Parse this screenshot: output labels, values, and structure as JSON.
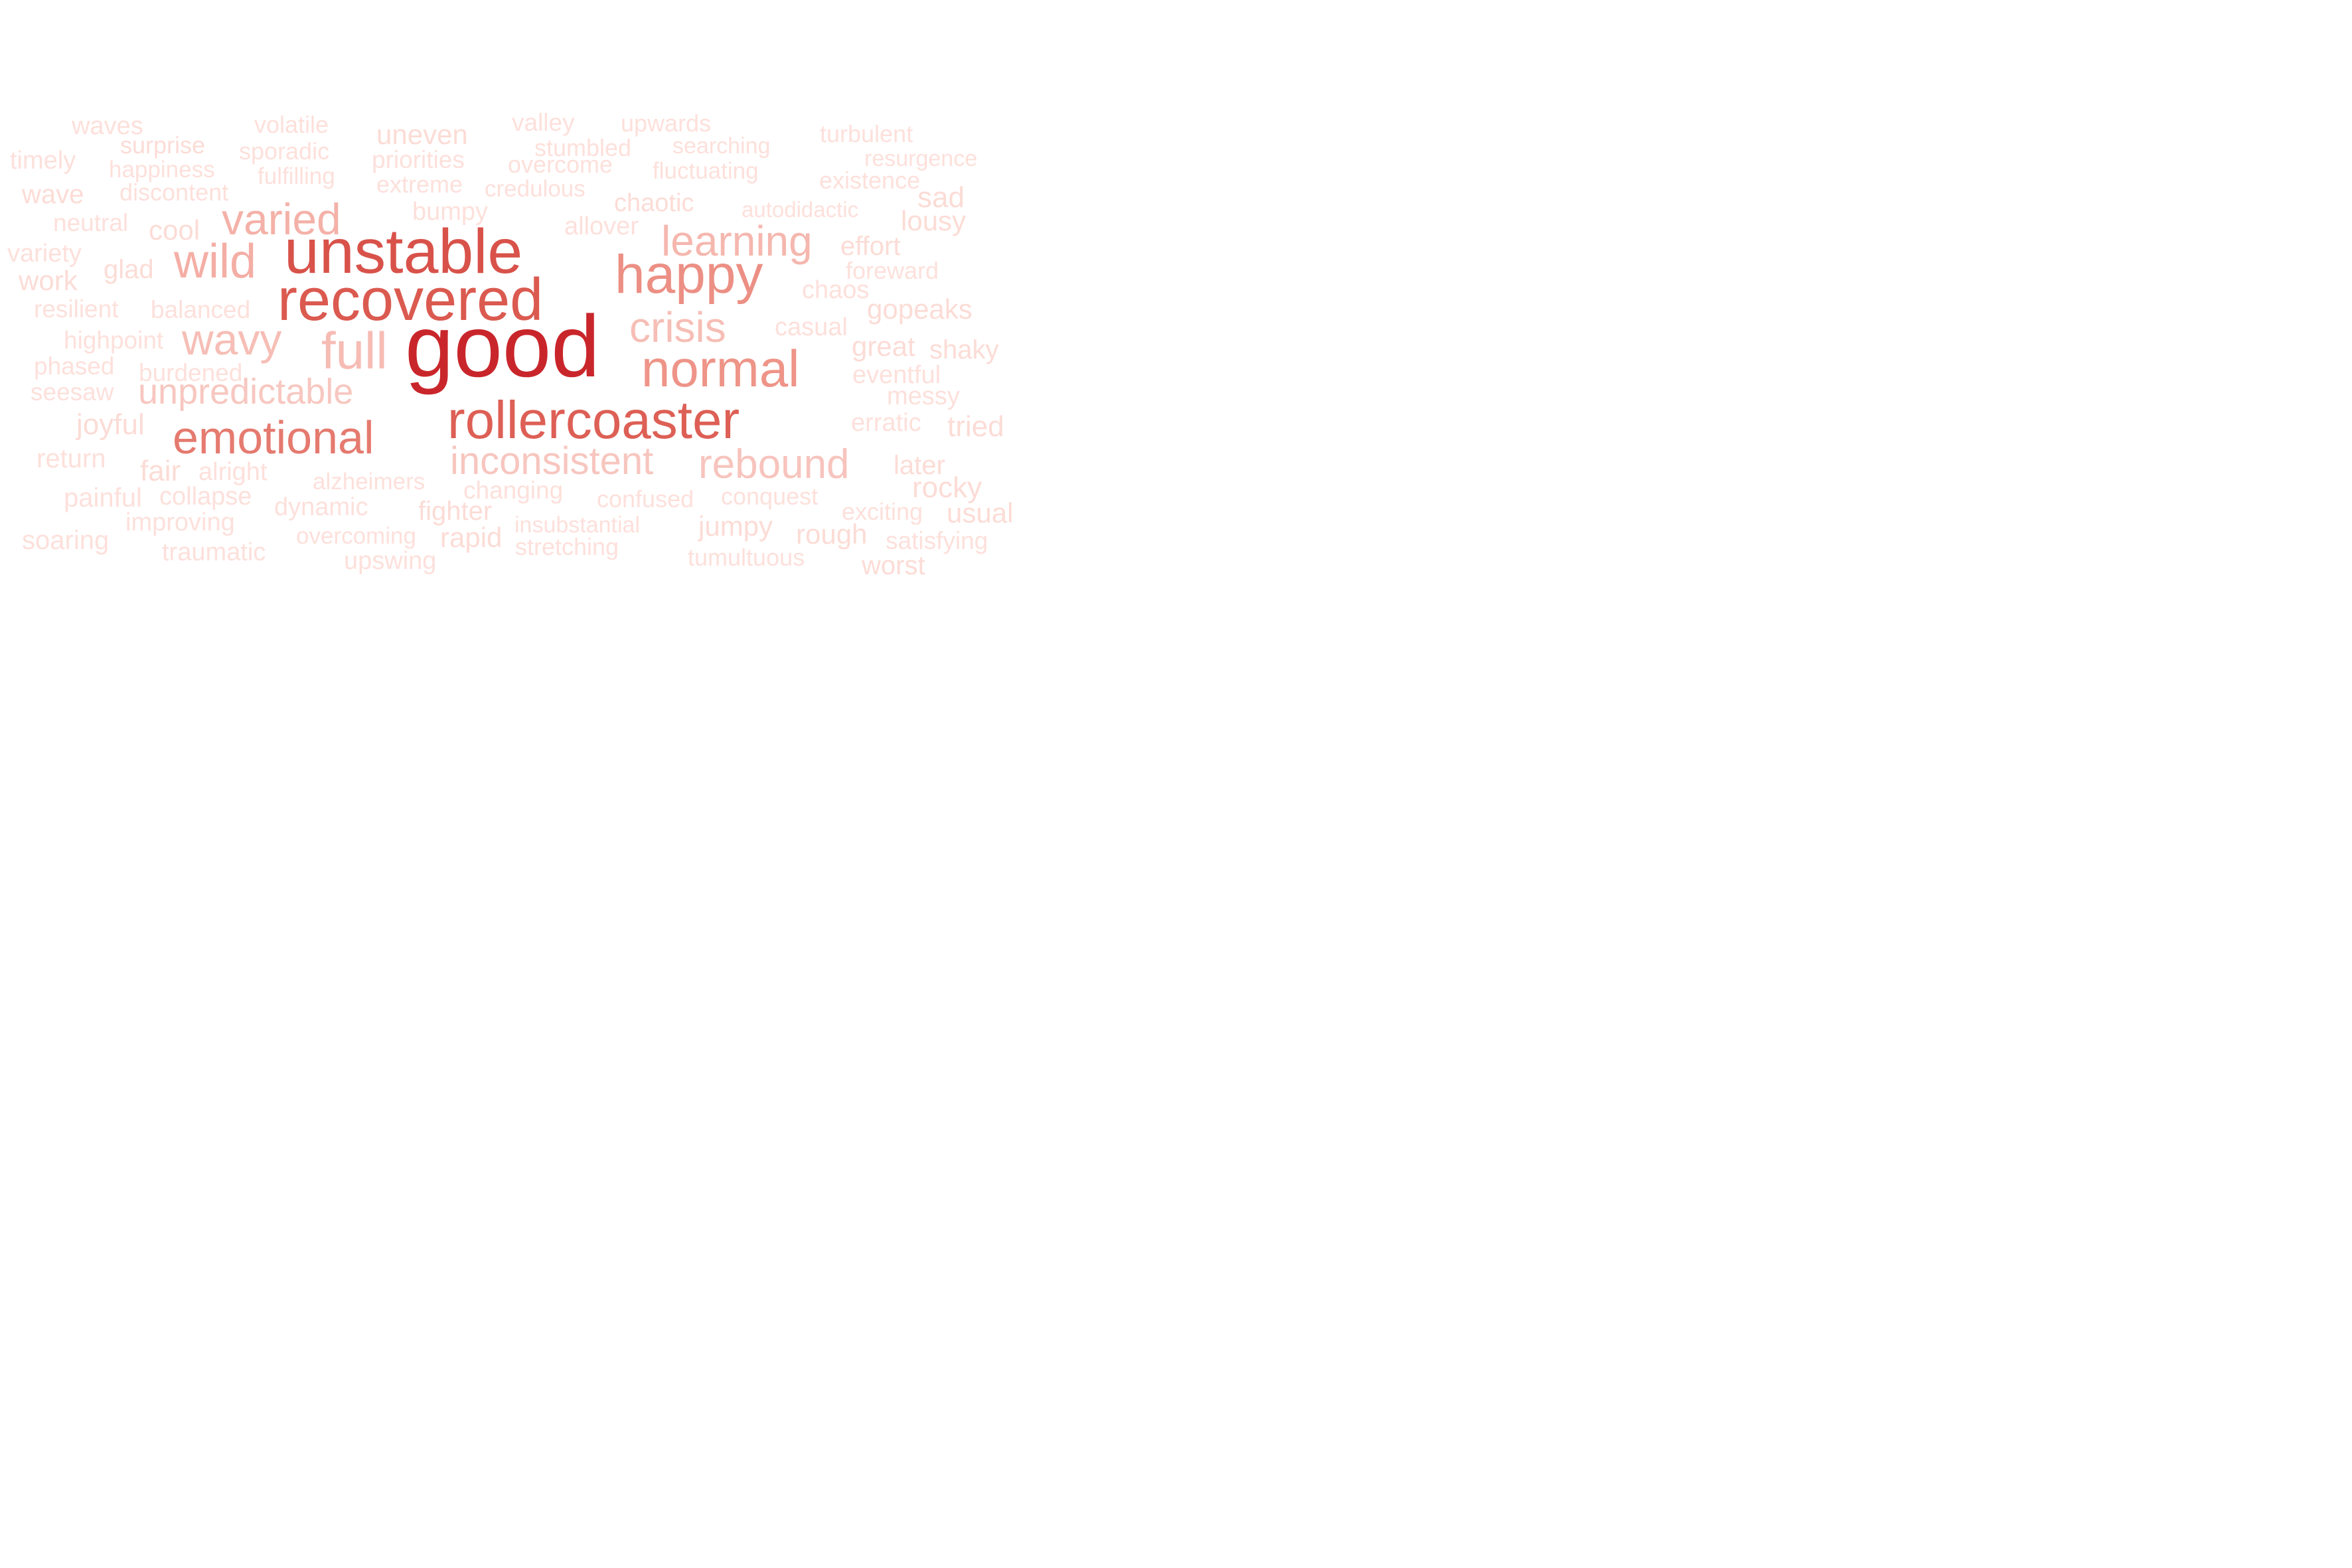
{
  "word_cloud": {
    "words": [
      {
        "text": "good",
        "weight": 1.0,
        "color": "#c9262b"
      },
      {
        "text": "unstable",
        "weight": 0.72,
        "color": "#d8524a"
      },
      {
        "text": "recovered",
        "weight": 0.68,
        "color": "#db5a50"
      },
      {
        "text": "rollercoaster",
        "weight": 0.62,
        "color": "#dd5f55"
      },
      {
        "text": "happy",
        "weight": 0.55,
        "color": "#ec8f84"
      },
      {
        "text": "emotional",
        "weight": 0.5,
        "color": "#e57a6f"
      },
      {
        "text": "normal",
        "weight": 0.5,
        "color": "#ee9488"
      },
      {
        "text": "wild",
        "weight": 0.42,
        "color": "#f4aea5"
      },
      {
        "text": "varied",
        "weight": 0.4,
        "color": "#f4b1a8"
      },
      {
        "text": "learning",
        "weight": 0.38,
        "color": "#f5b7ae"
      },
      {
        "text": "full",
        "weight": 0.4,
        "color": "#f6bcb4"
      },
      {
        "text": "wavy",
        "weight": 0.38,
        "color": "#f6beb6"
      },
      {
        "text": "crisis",
        "weight": 0.36,
        "color": "#f6beb6"
      },
      {
        "text": "inconsistent",
        "weight": 0.34,
        "color": "#f7c6bf"
      },
      {
        "text": "rebound",
        "weight": 0.34,
        "color": "#f7c4bd"
      },
      {
        "text": "unpredictable",
        "weight": 0.3,
        "color": "#f7c7c0"
      },
      {
        "text": "waves",
        "weight": 0.15,
        "color": "#fde0db"
      },
      {
        "text": "volatile",
        "weight": 0.15,
        "color": "#fde0db"
      },
      {
        "text": "uneven",
        "weight": 0.16,
        "color": "#fcdcd6"
      },
      {
        "text": "valley",
        "weight": 0.15,
        "color": "#fde0db"
      },
      {
        "text": "upwards",
        "weight": 0.15,
        "color": "#fde0db"
      },
      {
        "text": "turbulent",
        "weight": 0.15,
        "color": "#fde0db"
      },
      {
        "text": "surprise",
        "weight": 0.15,
        "color": "#fcdcd6"
      },
      {
        "text": "sporadic",
        "weight": 0.15,
        "color": "#fde0db"
      },
      {
        "text": "stumbled",
        "weight": 0.15,
        "color": "#fde0db"
      },
      {
        "text": "searching",
        "weight": 0.15,
        "color": "#fde0db"
      },
      {
        "text": "timely",
        "weight": 0.15,
        "color": "#fde0db"
      },
      {
        "text": "happiness",
        "weight": 0.15,
        "color": "#fde0db"
      },
      {
        "text": "fulfilling",
        "weight": 0.15,
        "color": "#fde0db"
      },
      {
        "text": "priorities",
        "weight": 0.15,
        "color": "#fde0db"
      },
      {
        "text": "overcome",
        "weight": 0.15,
        "color": "#fde0db"
      },
      {
        "text": "fluctuating",
        "weight": 0.15,
        "color": "#fde0db"
      },
      {
        "text": "resurgence",
        "weight": 0.15,
        "color": "#fde0db"
      },
      {
        "text": "wave",
        "weight": 0.17,
        "color": "#fcdcd6"
      },
      {
        "text": "discontent",
        "weight": 0.15,
        "color": "#fde0db"
      },
      {
        "text": "extreme",
        "weight": 0.15,
        "color": "#fde0db"
      },
      {
        "text": "credulous",
        "weight": 0.15,
        "color": "#fde0db"
      },
      {
        "text": "existence",
        "weight": 0.15,
        "color": "#fde0db"
      },
      {
        "text": "sad",
        "weight": 0.17,
        "color": "#fcdcd6"
      },
      {
        "text": "chaotic",
        "weight": 0.16,
        "color": "#fcdcd6"
      },
      {
        "text": "bumpy",
        "weight": 0.15,
        "color": "#fde0db"
      },
      {
        "text": "autodidactic",
        "weight": 0.14,
        "color": "#fde0db"
      },
      {
        "text": "neutral",
        "weight": 0.15,
        "color": "#fde0db"
      },
      {
        "text": "cool",
        "weight": 0.17,
        "color": "#fcdcd6"
      },
      {
        "text": "allover",
        "weight": 0.15,
        "color": "#fde0db"
      },
      {
        "text": "lousy",
        "weight": 0.17,
        "color": "#fcdcd6"
      },
      {
        "text": "variety",
        "weight": 0.15,
        "color": "#fde0db"
      },
      {
        "text": "effort",
        "weight": 0.16,
        "color": "#fcdcd6"
      },
      {
        "text": "work",
        "weight": 0.16,
        "color": "#fcdcd6"
      },
      {
        "text": "glad",
        "weight": 0.16,
        "color": "#fcdcd6"
      },
      {
        "text": "foreward",
        "weight": 0.15,
        "color": "#fde0db"
      },
      {
        "text": "chaos",
        "weight": 0.15,
        "color": "#fde0db"
      },
      {
        "text": "resilient",
        "weight": 0.15,
        "color": "#fde0db"
      },
      {
        "text": "balanced",
        "weight": 0.15,
        "color": "#fde0db"
      },
      {
        "text": "gopeaks",
        "weight": 0.16,
        "color": "#fcdcd6"
      },
      {
        "text": "casual",
        "weight": 0.15,
        "color": "#fde0db"
      },
      {
        "text": "highpoint",
        "weight": 0.15,
        "color": "#fde0db"
      },
      {
        "text": "great",
        "weight": 0.16,
        "color": "#fcdcd6"
      },
      {
        "text": "shaky",
        "weight": 0.16,
        "color": "#fcdcd6"
      },
      {
        "text": "phased",
        "weight": 0.15,
        "color": "#fde0db"
      },
      {
        "text": "burdened",
        "weight": 0.15,
        "color": "#fde0db"
      },
      {
        "text": "eventful",
        "weight": 0.15,
        "color": "#fde0db"
      },
      {
        "text": "seesaw",
        "weight": 0.15,
        "color": "#fde0db"
      },
      {
        "text": "messy",
        "weight": 0.15,
        "color": "#fde0db"
      },
      {
        "text": "joyful",
        "weight": 0.16,
        "color": "#fcdcd6"
      },
      {
        "text": "erratic",
        "weight": 0.15,
        "color": "#fde0db"
      },
      {
        "text": "tried",
        "weight": 0.16,
        "color": "#fcdcd6"
      },
      {
        "text": "return",
        "weight": 0.15,
        "color": "#fde0db"
      },
      {
        "text": "fair",
        "weight": 0.17,
        "color": "#fcdcd6"
      },
      {
        "text": "alright",
        "weight": 0.15,
        "color": "#fde0db"
      },
      {
        "text": "later",
        "weight": 0.16,
        "color": "#fcdcd6"
      },
      {
        "text": "alzheimers",
        "weight": 0.14,
        "color": "#fde0db"
      },
      {
        "text": "changing",
        "weight": 0.15,
        "color": "#fde0db"
      },
      {
        "text": "rocky",
        "weight": 0.16,
        "color": "#fcdcd6"
      },
      {
        "text": "painful",
        "weight": 0.15,
        "color": "#fde0db"
      },
      {
        "text": "collapse",
        "weight": 0.15,
        "color": "#fde0db"
      },
      {
        "text": "confused",
        "weight": 0.15,
        "color": "#fde0db"
      },
      {
        "text": "conquest",
        "weight": 0.15,
        "color": "#fde0db"
      },
      {
        "text": "dynamic",
        "weight": 0.15,
        "color": "#fde0db"
      },
      {
        "text": "fighter",
        "weight": 0.16,
        "color": "#fcdcd6"
      },
      {
        "text": "exciting",
        "weight": 0.15,
        "color": "#fde0db"
      },
      {
        "text": "usual",
        "weight": 0.16,
        "color": "#fcdcd6"
      },
      {
        "text": "improving",
        "weight": 0.15,
        "color": "#fde0db"
      },
      {
        "text": "insubstantial",
        "weight": 0.14,
        "color": "#fde0db"
      },
      {
        "text": "jumpy",
        "weight": 0.16,
        "color": "#fcdcd6"
      },
      {
        "text": "soaring",
        "weight": 0.15,
        "color": "#fde0db"
      },
      {
        "text": "overcoming",
        "weight": 0.15,
        "color": "#fde0db"
      },
      {
        "text": "rapid",
        "weight": 0.16,
        "color": "#fcdcd6"
      },
      {
        "text": "rough",
        "weight": 0.16,
        "color": "#fcdcd6"
      },
      {
        "text": "satisfying",
        "weight": 0.15,
        "color": "#fde0db"
      },
      {
        "text": "traumatic",
        "weight": 0.15,
        "color": "#fde0db"
      },
      {
        "text": "stretching",
        "weight": 0.15,
        "color": "#fde0db"
      },
      {
        "text": "tumultuous",
        "weight": 0.15,
        "color": "#fde0db"
      },
      {
        "text": "upswing",
        "weight": 0.15,
        "color": "#fde0db"
      },
      {
        "text": "worst",
        "weight": 0.16,
        "color": "#fcdcd6"
      }
    ]
  }
}
